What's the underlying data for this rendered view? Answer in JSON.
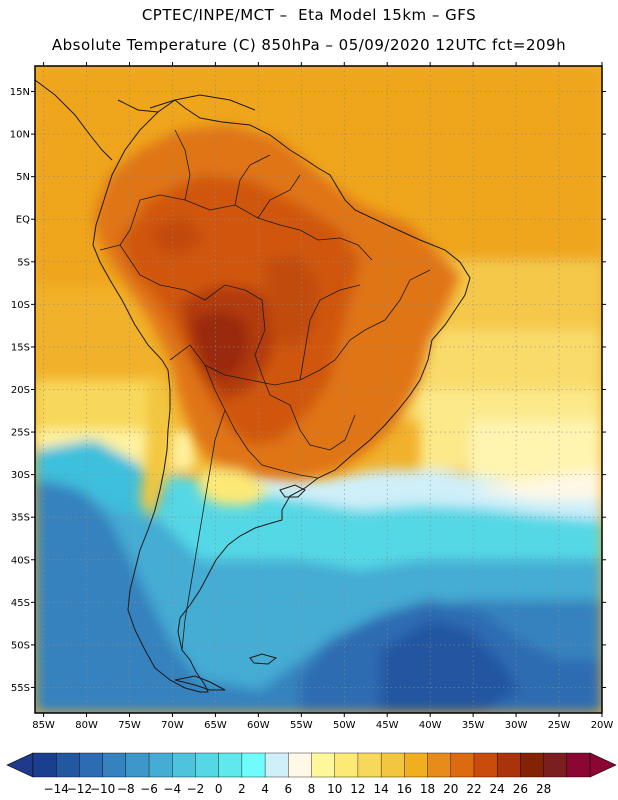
{
  "header": {
    "line1": "CPTEC/INPE/MCT –  Eta Model 15km – GFS",
    "line2": "Absolute Temperature (C) 850hPa – 05/09/2020 12UTC fct=209h"
  },
  "map": {
    "lat_range": [
      -58,
      18
    ],
    "lon_range": [
      -86,
      -20
    ],
    "lat_labels": [
      "15N",
      "10N",
      "5N",
      "EQ",
      "5S",
      "10S",
      "15S",
      "20S",
      "25S",
      "30S",
      "35S",
      "40S",
      "45S",
      "50S",
      "55S"
    ],
    "lat_values": [
      15,
      10,
      5,
      0,
      -5,
      -10,
      -15,
      -20,
      -25,
      -30,
      -35,
      -40,
      -45,
      -50,
      -55
    ],
    "lon_labels": [
      "85W",
      "80W",
      "75W",
      "70W",
      "65W",
      "60W",
      "55W",
      "50W",
      "45W",
      "40W",
      "35W",
      "30W",
      "25W",
      "20W"
    ],
    "lon_values": [
      -85,
      -80,
      -75,
      -70,
      -65,
      -60,
      -55,
      -50,
      -45,
      -40,
      -35,
      -30,
      -25,
      -20
    ]
  },
  "colorbar": {
    "labels": [
      "-14",
      "-12",
      "-10",
      "-8",
      "-6",
      "-4",
      "-2",
      "0",
      "2",
      "4",
      "6",
      "8",
      "10",
      "12",
      "14",
      "16",
      "18",
      "20",
      "22",
      "24",
      "26",
      "28"
    ],
    "colors": [
      "#1a3f8f",
      "#2357a0",
      "#2d6cb2",
      "#3582be",
      "#3c98c8",
      "#45acd4",
      "#4dc3dd",
      "#55d8e6",
      "#5fe9ec",
      "#6ffcfc",
      "#cfeff9",
      "#fff8e6",
      "#fff79a",
      "#fde975",
      "#f8d85a",
      "#f3c63f",
      "#efaf1f",
      "#e78b1b",
      "#db6a10",
      "#c94c0d",
      "#ab330b",
      "#842206",
      "#7a1e20",
      "#8c0633"
    ],
    "left_arrow_color": "#1f3a8a",
    "right_arrow_color": "#8c0633"
  }
}
